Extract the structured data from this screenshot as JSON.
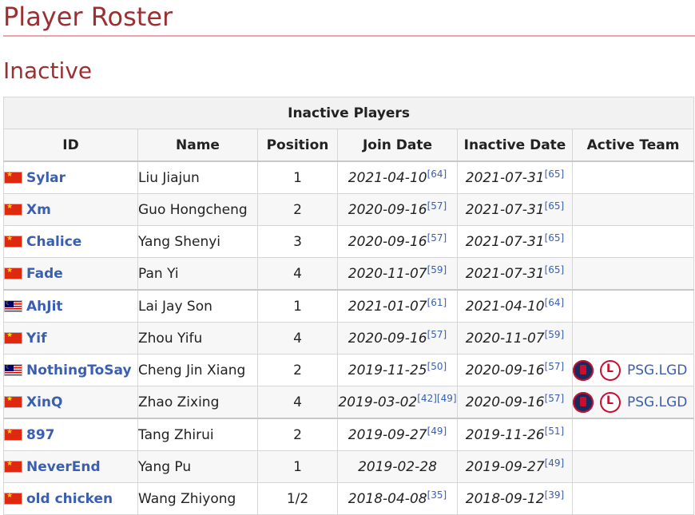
{
  "page": {
    "title": "Player Roster",
    "subtitle": "Inactive"
  },
  "table": {
    "caption": "Inactive Players",
    "headers": [
      "ID",
      "Name",
      "Position",
      "Join Date",
      "Inactive Date",
      "Active Team"
    ],
    "rows": [
      {
        "flag": "china-flag",
        "id": "Sylar",
        "name": "Liu Jiajun",
        "position": "1",
        "join": "2021-04-10",
        "join_refs": [
          "[64]"
        ],
        "inactive": "2021-07-31",
        "inactive_refs": [
          "[65]"
        ],
        "team": ""
      },
      {
        "flag": "china-flag",
        "id": "Xm",
        "name": "Guo Hongcheng",
        "position": "2",
        "join": "2020-09-16",
        "join_refs": [
          "[57]"
        ],
        "inactive": "2021-07-31",
        "inactive_refs": [
          "[65]"
        ],
        "team": ""
      },
      {
        "flag": "china-flag",
        "id": "Chalice",
        "name": "Yang Shenyi",
        "position": "3",
        "join": "2020-09-16",
        "join_refs": [
          "[57]"
        ],
        "inactive": "2021-07-31",
        "inactive_refs": [
          "[65]"
        ],
        "team": ""
      },
      {
        "flag": "china-flag",
        "id": "Fade",
        "name": "Pan Yi",
        "position": "4",
        "join": "2020-11-07",
        "join_refs": [
          "[59]"
        ],
        "inactive": "2021-07-31",
        "inactive_refs": [
          "[65]"
        ],
        "team": ""
      },
      {
        "flag": "malaysia-flag",
        "id": "AhJit",
        "name": "Lai Jay Son",
        "position": "1",
        "join": "2021-01-07",
        "join_refs": [
          "[61]"
        ],
        "inactive": "2021-04-10",
        "inactive_refs": [
          "[64]"
        ],
        "team": ""
      },
      {
        "flag": "china-flag",
        "id": "Yif",
        "name": "Zhou Yifu",
        "position": "4",
        "join": "2020-09-16",
        "join_refs": [
          "[57]"
        ],
        "inactive": "2020-11-07",
        "inactive_refs": [
          "[59]"
        ],
        "team": ""
      },
      {
        "flag": "malaysia-flag",
        "id": "NothingToSay",
        "name": "Cheng Jin Xiang",
        "position": "2",
        "join": "2019-11-25",
        "join_refs": [
          "[50]"
        ],
        "inactive": "2020-09-16",
        "inactive_refs": [
          "[57]"
        ],
        "team": "PSG.LGD"
      },
      {
        "flag": "china-flag",
        "id": "XinQ",
        "name": "Zhao Zixing",
        "position": "4",
        "join": "2019-03-02",
        "join_refs": [
          "[42]",
          "[49]"
        ],
        "inactive": "2020-09-16",
        "inactive_refs": [
          "[57]"
        ],
        "team": "PSG.LGD"
      },
      {
        "flag": "china-flag",
        "id": "897",
        "name": "Tang Zhirui",
        "position": "2",
        "join": "2019-09-27",
        "join_refs": [
          "[49]"
        ],
        "inactive": "2019-11-26",
        "inactive_refs": [
          "[51]"
        ],
        "team": ""
      },
      {
        "flag": "china-flag",
        "id": "NeverEnd",
        "name": "Yang Pu",
        "position": "1",
        "join": "2019-02-28",
        "join_refs": [],
        "inactive": "2019-09-27",
        "inactive_refs": [
          "[49]"
        ],
        "team": ""
      },
      {
        "flag": "china-flag",
        "id": "old chicken",
        "name": "Wang Zhiyong",
        "position": "1/2",
        "join": "2018-04-08",
        "join_refs": [
          "[35]"
        ],
        "inactive": "2018-09-12",
        "inactive_refs": [
          "[39]"
        ],
        "team": ""
      }
    ]
  },
  "colors": {
    "heading": "#9b3034",
    "link": "#3a5fb0"
  }
}
